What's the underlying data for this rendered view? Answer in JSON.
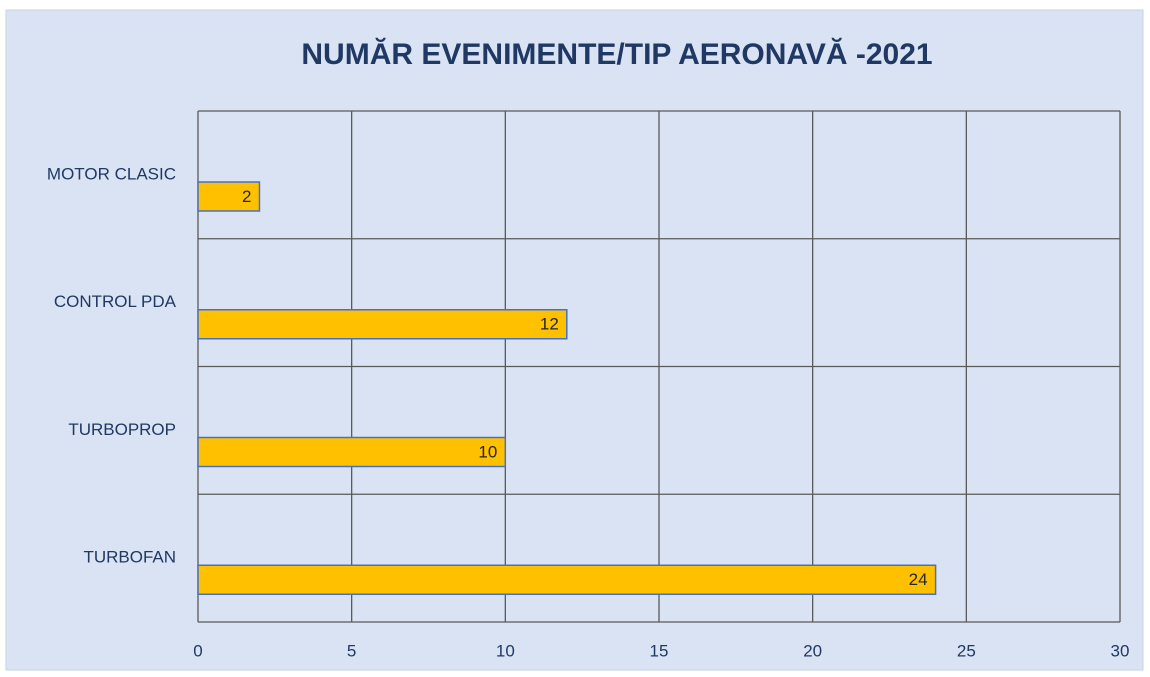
{
  "chart_data": {
    "type": "bar",
    "orientation": "horizontal",
    "title": "NUMĂR EVENIMENTE/TIP AERONAVĂ -2021",
    "categories": [
      "MOTOR CLASIC",
      "CONTROL PDA",
      "TURBOPROP",
      "TURBOFAN"
    ],
    "values": [
      2,
      12,
      10,
      24
    ],
    "color": "#ffc000",
    "xlim": [
      0,
      30
    ],
    "xticks": [
      0,
      5,
      10,
      15,
      20,
      25,
      30
    ],
    "grid": true
  }
}
